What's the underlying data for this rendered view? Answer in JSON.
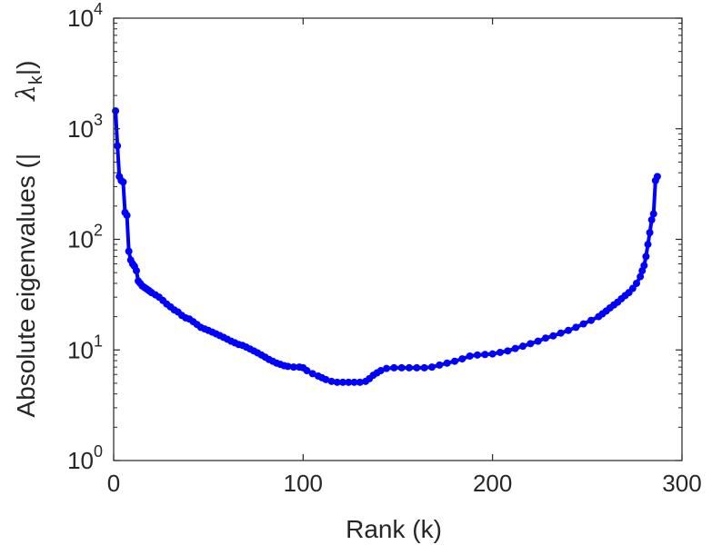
{
  "chart_data": {
    "type": "line",
    "title": "",
    "xlabel": "Rank (k)",
    "ylabel": {
      "prefix": "Absolute eigenvalues (|",
      "symbol": "λ",
      "subscript": "k",
      "suffix": "|)"
    },
    "xlim": [
      0,
      300
    ],
    "ylim": [
      1,
      10000
    ],
    "yscale": "log",
    "grid": false,
    "legend": "none",
    "x_ticks": [
      "0",
      "100",
      "200",
      "300"
    ],
    "y_ticks": [
      {
        "base": "10",
        "exp": "0"
      },
      {
        "base": "10",
        "exp": "1"
      },
      {
        "base": "10",
        "exp": "2"
      },
      {
        "base": "10",
        "exp": "3"
      },
      {
        "base": "10",
        "exp": "4"
      }
    ],
    "series": [
      {
        "color": "#0000ff",
        "marker": "circle",
        "points": [
          [
            1,
            1450
          ],
          [
            2,
            700
          ],
          [
            3,
            370
          ],
          [
            4,
            340
          ],
          [
            5,
            330
          ],
          [
            6,
            175
          ],
          [
            7,
            165
          ],
          [
            8,
            78
          ],
          [
            9,
            65
          ],
          [
            10,
            60
          ],
          [
            11,
            57
          ],
          [
            12,
            52
          ],
          [
            13,
            42
          ],
          [
            14,
            40
          ],
          [
            15,
            38
          ],
          [
            16,
            37
          ],
          [
            17,
            36
          ],
          [
            18,
            35
          ],
          [
            19,
            34
          ],
          [
            20,
            33
          ],
          [
            22,
            31.5
          ],
          [
            24,
            30
          ],
          [
            26,
            28
          ],
          [
            28,
            26
          ],
          [
            30,
            24.5
          ],
          [
            32,
            23
          ],
          [
            34,
            22
          ],
          [
            36,
            20.5
          ],
          [
            38,
            19.5
          ],
          [
            40,
            19
          ],
          [
            42,
            18
          ],
          [
            44,
            17
          ],
          [
            46,
            16
          ],
          [
            48,
            15.5
          ],
          [
            50,
            15
          ],
          [
            52,
            14.5
          ],
          [
            54,
            14
          ],
          [
            56,
            13.5
          ],
          [
            58,
            13
          ],
          [
            60,
            12.5
          ],
          [
            62,
            12
          ],
          [
            64,
            11.6
          ],
          [
            66,
            11.2
          ],
          [
            68,
            11
          ],
          [
            70,
            10.6
          ],
          [
            72,
            10.2
          ],
          [
            74,
            9.8
          ],
          [
            76,
            9.4
          ],
          [
            78,
            9
          ],
          [
            80,
            8.6
          ],
          [
            82,
            8.2
          ],
          [
            84,
            7.9
          ],
          [
            86,
            7.6
          ],
          [
            88,
            7.4
          ],
          [
            90,
            7.2
          ],
          [
            92,
            7.1
          ],
          [
            95,
            7
          ],
          [
            98,
            7
          ],
          [
            100,
            6.9
          ],
          [
            102,
            6.5
          ],
          [
            105,
            6.1
          ],
          [
            108,
            5.8
          ],
          [
            110,
            5.6
          ],
          [
            112,
            5.4
          ],
          [
            115,
            5.2
          ],
          [
            118,
            5.1
          ],
          [
            121,
            5.1
          ],
          [
            124,
            5.1
          ],
          [
            127,
            5.1
          ],
          [
            130,
            5.1
          ],
          [
            133,
            5.2
          ],
          [
            135,
            5.5
          ],
          [
            137,
            5.9
          ],
          [
            139,
            6.2
          ],
          [
            141,
            6.5
          ],
          [
            144,
            6.8
          ],
          [
            148,
            6.9
          ],
          [
            152,
            6.9
          ],
          [
            156,
            6.9
          ],
          [
            160,
            6.9
          ],
          [
            164,
            6.9
          ],
          [
            168,
            7
          ],
          [
            172,
            7.3
          ],
          [
            176,
            7.6
          ],
          [
            180,
            7.9
          ],
          [
            184,
            8.3
          ],
          [
            188,
            8.8
          ],
          [
            192,
            9
          ],
          [
            196,
            9.1
          ],
          [
            200,
            9.2
          ],
          [
            204,
            9.5
          ],
          [
            208,
            9.8
          ],
          [
            212,
            10.3
          ],
          [
            216,
            10.8
          ],
          [
            220,
            11.4
          ],
          [
            224,
            12
          ],
          [
            228,
            12.8
          ],
          [
            232,
            13.4
          ],
          [
            236,
            14.2
          ],
          [
            240,
            15
          ],
          [
            244,
            16
          ],
          [
            248,
            17.2
          ],
          [
            252,
            18.5
          ],
          [
            256,
            20
          ],
          [
            258,
            21.2
          ],
          [
            260,
            22.5
          ],
          [
            262,
            24
          ],
          [
            264,
            25.5
          ],
          [
            266,
            27
          ],
          [
            268,
            29
          ],
          [
            270,
            31
          ],
          [
            272,
            33
          ],
          [
            274,
            36
          ],
          [
            276,
            40
          ],
          [
            278,
            46
          ],
          [
            279,
            52
          ],
          [
            280,
            58
          ],
          [
            281,
            70
          ],
          [
            282,
            90
          ],
          [
            283,
            115
          ],
          [
            284,
            150
          ],
          [
            285,
            170
          ],
          [
            286,
            340
          ],
          [
            287,
            370
          ]
        ]
      }
    ]
  }
}
